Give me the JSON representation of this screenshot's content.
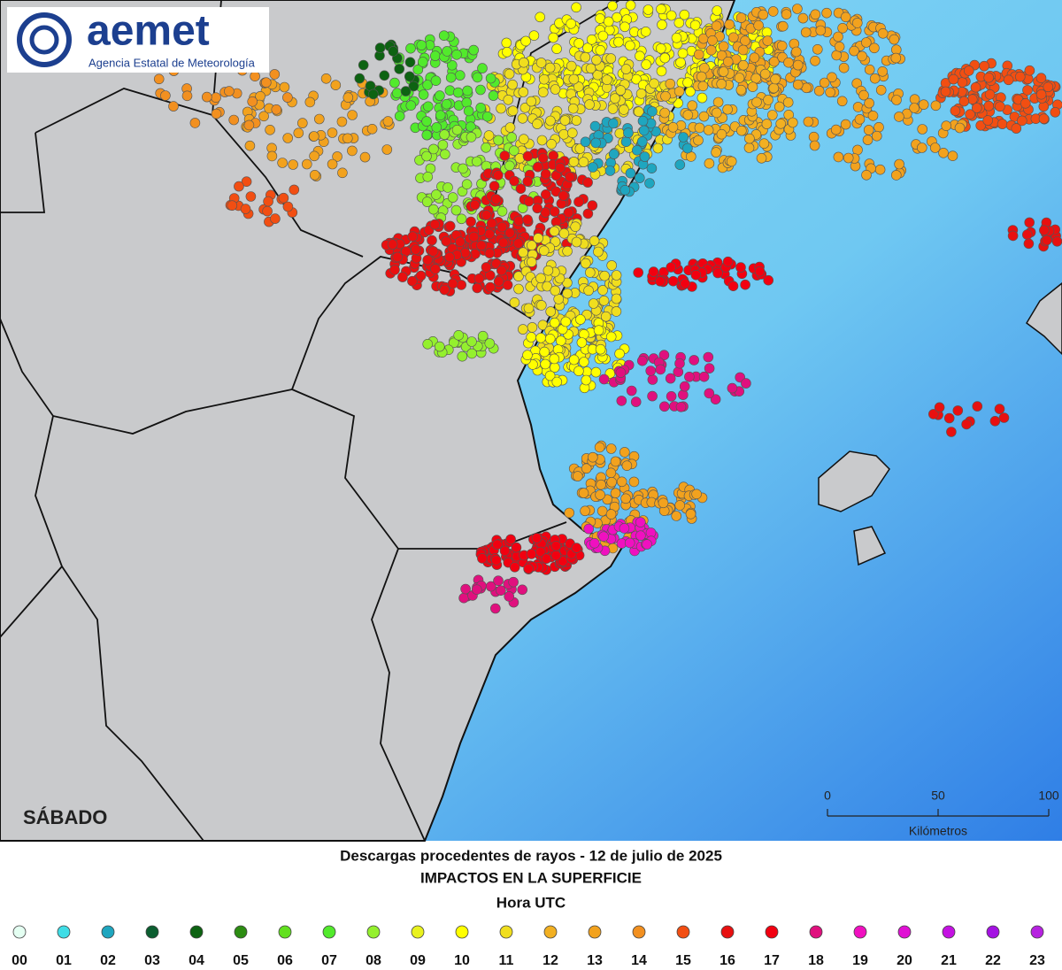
{
  "logo": {
    "name": "aemet",
    "subtitle": "Agencia Estatal de Meteorología"
  },
  "day_label": "SÁBADO",
  "scale": {
    "ticks": [
      0,
      50,
      100
    ],
    "unit": "Kilómetros"
  },
  "caption": {
    "title": "Descargas procedentes de rayos - 12 de julio de 2025",
    "subtitle": "IMPACTOS EN LA SUPERFICIE",
    "legend_title": "Hora UTC"
  },
  "legend": [
    {
      "label": "00",
      "color": "#e4fff2"
    },
    {
      "label": "01",
      "color": "#3fdde6"
    },
    {
      "label": "02",
      "color": "#1fa6bf"
    },
    {
      "label": "03",
      "color": "#0b5e30"
    },
    {
      "label": "04",
      "color": "#0d6312"
    },
    {
      "label": "05",
      "color": "#2c8c12"
    },
    {
      "label": "06",
      "color": "#62e020"
    },
    {
      "label": "07",
      "color": "#52ea2c"
    },
    {
      "label": "08",
      "color": "#94f02e"
    },
    {
      "label": "09",
      "color": "#e9f21e"
    },
    {
      "label": "10",
      "color": "#ffff00"
    },
    {
      "label": "11",
      "color": "#f0de1e"
    },
    {
      "label": "12",
      "color": "#f2b022"
    },
    {
      "label": "13",
      "color": "#f2a21e"
    },
    {
      "label": "14",
      "color": "#f29020"
    },
    {
      "label": "15",
      "color": "#f24e12"
    },
    {
      "label": "16",
      "color": "#e81010"
    },
    {
      "label": "17",
      "color": "#f20010"
    },
    {
      "label": "18",
      "color": "#e0107e"
    },
    {
      "label": "19",
      "color": "#f010c0"
    },
    {
      "label": "20",
      "color": "#e010d4"
    },
    {
      "label": "21",
      "color": "#c412e2"
    },
    {
      "label": "22",
      "color": "#a412e2"
    },
    {
      "label": "23",
      "color": "#b622e0"
    }
  ]
}
